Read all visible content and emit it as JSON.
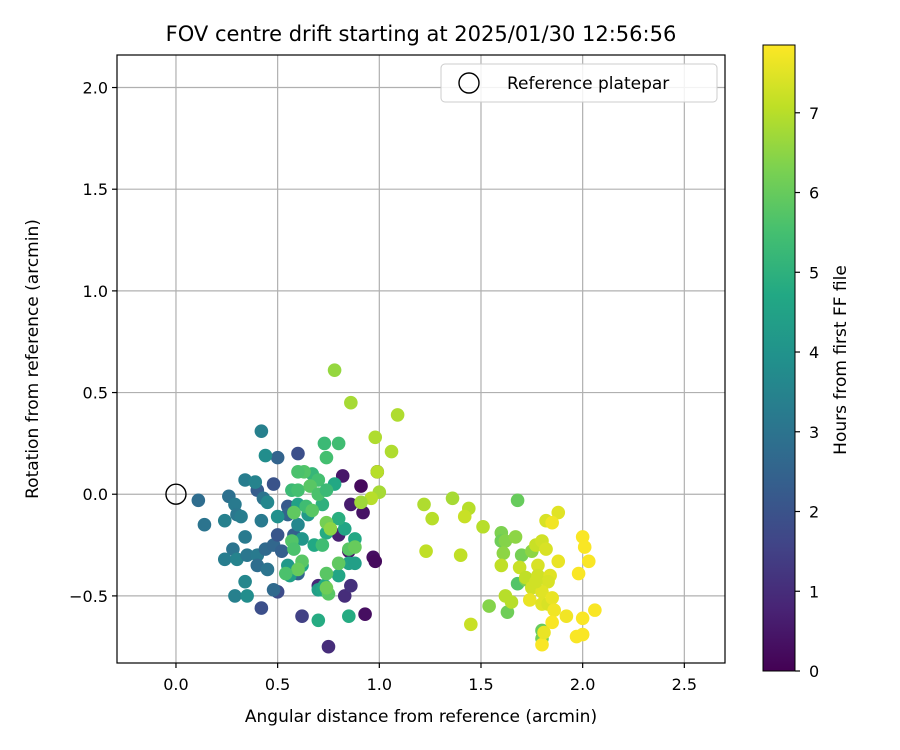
{
  "chart_data": {
    "type": "scatter",
    "title": "FOV centre drift starting at 2025/01/30 12:56:56",
    "xlabel": "Angular distance from reference (arcmin)",
    "ylabel": "Rotation from reference (arcmin)",
    "xlim": [
      -0.29,
      2.7
    ],
    "ylim": [
      -0.83,
      2.16
    ],
    "xticks": [
      0.0,
      0.5,
      1.0,
      1.5,
      2.0,
      2.5
    ],
    "xtick_labels": [
      "0.0",
      "0.5",
      "1.0",
      "1.5",
      "2.0",
      "2.5"
    ],
    "yticks": [
      -0.5,
      0.0,
      0.5,
      1.0,
      1.5,
      2.0
    ],
    "ytick_labels": [
      "−0.5",
      "0.0",
      "0.5",
      "1.0",
      "1.5",
      "2.0"
    ],
    "grid": true,
    "legend": {
      "position": "top-right",
      "entries": [
        "Reference platepar"
      ]
    },
    "reference_point": {
      "x": 0.0,
      "y": 0.0
    },
    "colorbar": {
      "label": "Hours from first FF file",
      "colormap": "viridis",
      "range": [
        0,
        7.85
      ],
      "ticks": [
        0,
        1,
        2,
        3,
        4,
        5,
        6,
        7
      ],
      "tick_labels": [
        "0",
        "1",
        "2",
        "3",
        "4",
        "5",
        "6",
        "7"
      ]
    },
    "points": [
      {
        "x": 0.91,
        "y": 0.04,
        "h": 0.2
      },
      {
        "x": 0.99,
        "y": 0.11,
        "h": 0.1
      },
      {
        "x": 0.97,
        "y": -0.31,
        "h": 0.3
      },
      {
        "x": 0.98,
        "y": -0.33,
        "h": 0.2
      },
      {
        "x": 0.93,
        "y": -0.59,
        "h": 0.3
      },
      {
        "x": 0.82,
        "y": 0.09,
        "h": 0.5
      },
      {
        "x": 0.92,
        "y": -0.09,
        "h": 0.4
      },
      {
        "x": 0.86,
        "y": -0.05,
        "h": 0.6
      },
      {
        "x": 0.8,
        "y": -0.2,
        "h": 0.7
      },
      {
        "x": 0.85,
        "y": -0.28,
        "h": 0.5
      },
      {
        "x": 0.75,
        "y": -0.75,
        "h": 1.0
      },
      {
        "x": 0.83,
        "y": -0.5,
        "h": 1.0
      },
      {
        "x": 0.86,
        "y": -0.45,
        "h": 1.1
      },
      {
        "x": 0.7,
        "y": -0.45,
        "h": 0.9
      },
      {
        "x": 0.62,
        "y": -0.6,
        "h": 1.5
      },
      {
        "x": 0.5,
        "y": -0.48,
        "h": 1.8
      },
      {
        "x": 0.42,
        "y": -0.56,
        "h": 1.9
      },
      {
        "x": 0.6,
        "y": 0.2,
        "h": 1.9
      },
      {
        "x": 0.5,
        "y": 0.18,
        "h": 2.5
      },
      {
        "x": 0.4,
        "y": 0.02,
        "h": 2.3
      },
      {
        "x": 0.48,
        "y": 0.05,
        "h": 2.0
      },
      {
        "x": 0.55,
        "y": -0.06,
        "h": 2.2
      },
      {
        "x": 0.58,
        "y": -0.2,
        "h": 2.4
      },
      {
        "x": 0.6,
        "y": -0.39,
        "h": 2.5
      },
      {
        "x": 0.48,
        "y": -0.47,
        "h": 2.7
      },
      {
        "x": 0.11,
        "y": -0.03,
        "h": 2.8
      },
      {
        "x": 0.14,
        "y": -0.15,
        "h": 3.0
      },
      {
        "x": 0.26,
        "y": -0.01,
        "h": 2.9
      },
      {
        "x": 0.29,
        "y": -0.05,
        "h": 3.2
      },
      {
        "x": 0.3,
        "y": -0.1,
        "h": 3.1
      },
      {
        "x": 0.24,
        "y": -0.13,
        "h": 3.4
      },
      {
        "x": 0.32,
        "y": -0.11,
        "h": 3.3
      },
      {
        "x": 0.34,
        "y": -0.21,
        "h": 3.2
      },
      {
        "x": 0.28,
        "y": -0.27,
        "h": 3.0
      },
      {
        "x": 0.24,
        "y": -0.32,
        "h": 3.3
      },
      {
        "x": 0.3,
        "y": -0.32,
        "h": 3.5
      },
      {
        "x": 0.35,
        "y": -0.3,
        "h": 3.1
      },
      {
        "x": 0.34,
        "y": -0.43,
        "h": 3.6
      },
      {
        "x": 0.29,
        "y": -0.5,
        "h": 3.4
      },
      {
        "x": 0.35,
        "y": -0.5,
        "h": 3.8
      },
      {
        "x": 0.4,
        "y": -0.3,
        "h": 3.2
      },
      {
        "x": 0.4,
        "y": -0.35,
        "h": 2.8
      },
      {
        "x": 0.44,
        "y": -0.27,
        "h": 2.7
      },
      {
        "x": 0.45,
        "y": -0.37,
        "h": 3.0
      },
      {
        "x": 0.48,
        "y": -0.25,
        "h": 2.6
      },
      {
        "x": 0.52,
        "y": -0.28,
        "h": 2.4
      },
      {
        "x": 0.5,
        "y": -0.2,
        "h": 2.1
      },
      {
        "x": 0.55,
        "y": -0.1,
        "h": 2.5
      },
      {
        "x": 0.58,
        "y": -0.09,
        "h": 3.0
      },
      {
        "x": 0.42,
        "y": 0.31,
        "h": 3.4
      },
      {
        "x": 0.44,
        "y": 0.19,
        "h": 3.8
      },
      {
        "x": 0.34,
        "y": 0.07,
        "h": 3.3
      },
      {
        "x": 0.39,
        "y": 0.06,
        "h": 3.5
      },
      {
        "x": 0.43,
        "y": -0.02,
        "h": 3.0
      },
      {
        "x": 0.45,
        "y": -0.04,
        "h": 3.6
      },
      {
        "x": 0.42,
        "y": -0.13,
        "h": 3.2
      },
      {
        "x": 0.5,
        "y": -0.11,
        "h": 3.9
      },
      {
        "x": 0.6,
        "y": -0.15,
        "h": 3.6
      },
      {
        "x": 0.62,
        "y": -0.22,
        "h": 4.1
      },
      {
        "x": 0.55,
        "y": -0.35,
        "h": 4.2
      },
      {
        "x": 0.56,
        "y": -0.4,
        "h": 4.4
      },
      {
        "x": 0.62,
        "y": -0.35,
        "h": 4.6
      },
      {
        "x": 0.6,
        "y": -0.05,
        "h": 4.5
      },
      {
        "x": 0.65,
        "y": -0.1,
        "h": 4.2
      },
      {
        "x": 0.68,
        "y": -0.25,
        "h": 4.7
      },
      {
        "x": 0.7,
        "y": -0.47,
        "h": 4.4
      },
      {
        "x": 0.72,
        "y": -0.47,
        "h": 4.6
      },
      {
        "x": 0.7,
        "y": -0.62,
        "h": 4.8
      },
      {
        "x": 0.73,
        "y": -0.45,
        "h": 4.7
      },
      {
        "x": 0.8,
        "y": -0.4,
        "h": 4.6
      },
      {
        "x": 0.85,
        "y": -0.6,
        "h": 4.8
      },
      {
        "x": 0.85,
        "y": -0.34,
        "h": 4.5
      },
      {
        "x": 0.88,
        "y": -0.34,
        "h": 4.4
      },
      {
        "x": 0.83,
        "y": -0.17,
        "h": 4.6
      },
      {
        "x": 0.8,
        "y": -0.12,
        "h": 4.9
      },
      {
        "x": 0.88,
        "y": -0.22,
        "h": 4.7
      },
      {
        "x": 0.74,
        "y": -0.19,
        "h": 4.8
      },
      {
        "x": 0.72,
        "y": -0.05,
        "h": 5.0
      },
      {
        "x": 0.78,
        "y": 0.05,
        "h": 4.7
      },
      {
        "x": 0.73,
        "y": 0.25,
        "h": 5.3
      },
      {
        "x": 0.8,
        "y": 0.25,
        "h": 5.4
      },
      {
        "x": 0.74,
        "y": 0.18,
        "h": 5.5
      },
      {
        "x": 0.67,
        "y": 0.1,
        "h": 5.2
      },
      {
        "x": 0.7,
        "y": 0.07,
        "h": 5.5
      },
      {
        "x": 0.63,
        "y": 0.11,
        "h": 5.7
      },
      {
        "x": 0.6,
        "y": 0.11,
        "h": 5.6
      },
      {
        "x": 0.57,
        "y": 0.02,
        "h": 5.3
      },
      {
        "x": 0.6,
        "y": 0.02,
        "h": 5.5
      },
      {
        "x": 0.66,
        "y": 0.04,
        "h": 5.8
      },
      {
        "x": 0.7,
        "y": 0.0,
        "h": 5.6
      },
      {
        "x": 0.74,
        "y": 0.02,
        "h": 5.3
      },
      {
        "x": 0.64,
        "y": -0.06,
        "h": 5.4
      },
      {
        "x": 0.67,
        "y": -0.08,
        "h": 5.8
      },
      {
        "x": 0.58,
        "y": -0.09,
        "h": 5.9
      },
      {
        "x": 0.57,
        "y": -0.23,
        "h": 5.7
      },
      {
        "x": 0.58,
        "y": -0.27,
        "h": 5.6
      },
      {
        "x": 0.62,
        "y": -0.33,
        "h": 5.8
      },
      {
        "x": 0.6,
        "y": -0.37,
        "h": 6.0
      },
      {
        "x": 0.54,
        "y": -0.39,
        "h": 5.6
      },
      {
        "x": 0.72,
        "y": -0.25,
        "h": 5.4
      },
      {
        "x": 0.74,
        "y": -0.39,
        "h": 5.8
      },
      {
        "x": 0.75,
        "y": -0.49,
        "h": 5.8
      },
      {
        "x": 0.74,
        "y": -0.46,
        "h": 6.1
      },
      {
        "x": 0.8,
        "y": -0.34,
        "h": 5.9
      },
      {
        "x": 0.85,
        "y": -0.27,
        "h": 5.8
      },
      {
        "x": 0.88,
        "y": -0.26,
        "h": 6.0
      },
      {
        "x": 0.74,
        "y": -0.14,
        "h": 6.2
      },
      {
        "x": 0.76,
        "y": -0.17,
        "h": 6.5
      },
      {
        "x": 0.78,
        "y": 0.61,
        "h": 6.6
      },
      {
        "x": 0.86,
        "y": 0.45,
        "h": 6.8
      },
      {
        "x": 1.09,
        "y": 0.39,
        "h": 6.9
      },
      {
        "x": 0.98,
        "y": 0.28,
        "h": 6.9
      },
      {
        "x": 1.06,
        "y": 0.21,
        "h": 6.9
      },
      {
        "x": 0.99,
        "y": 0.11,
        "h": 7.0
      },
      {
        "x": 1.0,
        "y": 0.01,
        "h": 6.8
      },
      {
        "x": 0.96,
        "y": -0.02,
        "h": 7.0
      },
      {
        "x": 0.91,
        "y": -0.04,
        "h": 6.7
      },
      {
        "x": 1.22,
        "y": -0.05,
        "h": 6.9
      },
      {
        "x": 1.26,
        "y": -0.12,
        "h": 7.0
      },
      {
        "x": 1.36,
        "y": -0.02,
        "h": 6.8
      },
      {
        "x": 1.44,
        "y": -0.07,
        "h": 7.0
      },
      {
        "x": 1.42,
        "y": -0.11,
        "h": 7.2
      },
      {
        "x": 1.51,
        "y": -0.16,
        "h": 7.0
      },
      {
        "x": 1.23,
        "y": -0.28,
        "h": 7.1
      },
      {
        "x": 1.4,
        "y": -0.3,
        "h": 7.1
      },
      {
        "x": 1.45,
        "y": -0.64,
        "h": 7.2
      },
      {
        "x": 1.54,
        "y": -0.55,
        "h": 6.4
      },
      {
        "x": 1.63,
        "y": -0.58,
        "h": 6.1
      },
      {
        "x": 1.68,
        "y": -0.03,
        "h": 6.0
      },
      {
        "x": 1.6,
        "y": -0.19,
        "h": 6.3
      },
      {
        "x": 1.6,
        "y": -0.23,
        "h": 6.1
      },
      {
        "x": 1.62,
        "y": -0.23,
        "h": 6.4
      },
      {
        "x": 1.67,
        "y": -0.21,
        "h": 6.5
      },
      {
        "x": 1.61,
        "y": -0.29,
        "h": 6.5
      },
      {
        "x": 1.7,
        "y": -0.3,
        "h": 6.2
      },
      {
        "x": 1.75,
        "y": -0.28,
        "h": 6.5
      },
      {
        "x": 1.68,
        "y": -0.44,
        "h": 5.7
      },
      {
        "x": 1.72,
        "y": -0.42,
        "h": 6.3
      },
      {
        "x": 1.8,
        "y": -0.67,
        "h": 6.0
      },
      {
        "x": 1.8,
        "y": -0.71,
        "h": 6.2
      },
      {
        "x": 1.6,
        "y": -0.35,
        "h": 7.1
      },
      {
        "x": 1.62,
        "y": -0.5,
        "h": 7.0
      },
      {
        "x": 1.65,
        "y": -0.53,
        "h": 7.0
      },
      {
        "x": 1.69,
        "y": -0.36,
        "h": 7.2
      },
      {
        "x": 1.72,
        "y": -0.41,
        "h": 7.1
      },
      {
        "x": 1.75,
        "y": -0.46,
        "h": 7.3
      },
      {
        "x": 1.78,
        "y": -0.35,
        "h": 7.4
      },
      {
        "x": 1.78,
        "y": -0.4,
        "h": 7.3
      },
      {
        "x": 1.77,
        "y": -0.25,
        "h": 7.2
      },
      {
        "x": 1.8,
        "y": -0.23,
        "h": 7.3
      },
      {
        "x": 1.82,
        "y": -0.27,
        "h": 7.4
      },
      {
        "x": 1.84,
        "y": -0.4,
        "h": 7.5
      },
      {
        "x": 1.83,
        "y": -0.43,
        "h": 7.4
      },
      {
        "x": 1.8,
        "y": -0.48,
        "h": 7.5
      },
      {
        "x": 1.77,
        "y": -0.43,
        "h": 7.3
      },
      {
        "x": 1.74,
        "y": -0.52,
        "h": 7.6
      },
      {
        "x": 1.8,
        "y": -0.54,
        "h": 7.5
      },
      {
        "x": 1.83,
        "y": -0.54,
        "h": 7.4
      },
      {
        "x": 1.85,
        "y": -0.51,
        "h": 7.6
      },
      {
        "x": 1.86,
        "y": -0.57,
        "h": 7.7
      },
      {
        "x": 1.82,
        "y": -0.13,
        "h": 7.4
      },
      {
        "x": 1.88,
        "y": -0.09,
        "h": 7.5
      },
      {
        "x": 1.85,
        "y": -0.14,
        "h": 7.7
      },
      {
        "x": 1.88,
        "y": -0.33,
        "h": 7.6
      },
      {
        "x": 1.92,
        "y": -0.6,
        "h": 7.7
      },
      {
        "x": 1.85,
        "y": -0.63,
        "h": 7.8
      },
      {
        "x": 1.8,
        "y": -0.74,
        "h": 7.8
      },
      {
        "x": 1.81,
        "y": -0.68,
        "h": 7.6
      },
      {
        "x": 1.98,
        "y": -0.39,
        "h": 7.8
      },
      {
        "x": 2.0,
        "y": -0.21,
        "h": 7.8
      },
      {
        "x": 2.01,
        "y": -0.26,
        "h": 7.8
      },
      {
        "x": 2.03,
        "y": -0.33,
        "h": 7.8
      },
      {
        "x": 2.06,
        "y": -0.57,
        "h": 7.8
      },
      {
        "x": 2.0,
        "y": -0.61,
        "h": 7.8
      },
      {
        "x": 2.0,
        "y": -0.69,
        "h": 7.8
      },
      {
        "x": 1.97,
        "y": -0.7,
        "h": 7.8
      }
    ]
  }
}
